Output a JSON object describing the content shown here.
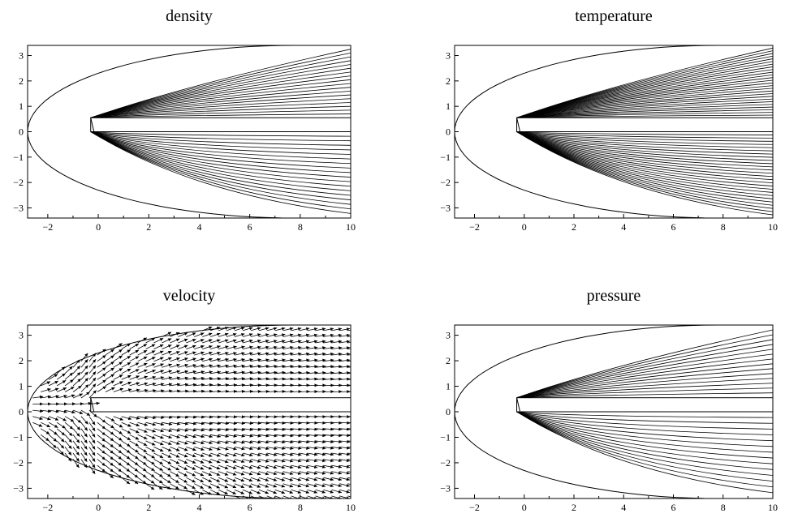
{
  "chart_data": [
    {
      "type": "contour",
      "title": "density",
      "xlim": [
        -2.8,
        10
      ],
      "ylim": [
        -3.4,
        3.4
      ],
      "xticks": [
        -2,
        0,
        2,
        4,
        6,
        8,
        10
      ],
      "yticks": [
        3,
        2,
        1,
        0,
        -1,
        -2,
        -3
      ],
      "xtick_labels": [
        "−2",
        "0",
        "2",
        "4",
        "6",
        "8",
        "10"
      ],
      "ytick_labels": [
        "3",
        "2",
        "1",
        "0",
        "−1",
        "−2",
        "−3"
      ],
      "plate": {
        "x_start": -0.3,
        "x_end": 10,
        "y_top": 0.55,
        "y_bottom": 0.0
      },
      "shock_nose_x": -2.8
    },
    {
      "type": "contour",
      "title": "temperature",
      "xlim": [
        -2.8,
        10
      ],
      "ylim": [
        -3.4,
        3.4
      ],
      "xticks": [
        -2,
        0,
        2,
        4,
        6,
        8,
        10
      ],
      "yticks": [
        3,
        2,
        1,
        0,
        -1,
        -2,
        -3
      ],
      "xtick_labels": [
        "−2",
        "0",
        "2",
        "4",
        "6",
        "8",
        "10"
      ],
      "ytick_labels": [
        "3",
        "2",
        "1",
        "0",
        "−1",
        "−2",
        "−3"
      ],
      "plate": {
        "x_start": -0.3,
        "x_end": 10,
        "y_top": 0.55,
        "y_bottom": 0.0
      },
      "shock_nose_x": -2.8
    },
    {
      "type": "vector_field",
      "title": "velocity",
      "xlim": [
        -2.8,
        10
      ],
      "ylim": [
        -3.4,
        3.4
      ],
      "xticks": [
        -2,
        0,
        2,
        4,
        6,
        8,
        10
      ],
      "yticks": [
        3,
        2,
        1,
        0,
        -1,
        -2,
        -3
      ],
      "xtick_labels": [
        "−2",
        "0",
        "2",
        "4",
        "6",
        "8",
        "10"
      ],
      "ytick_labels": [
        "3",
        "2",
        "1",
        "0",
        "−1",
        "−2",
        "−3"
      ],
      "plate": {
        "x_start": -0.3,
        "x_end": 10,
        "y_top": 0.55,
        "y_bottom": 0.0
      },
      "shock_nose_x": -2.8
    },
    {
      "type": "contour",
      "title": "pressure",
      "xlim": [
        -2.8,
        10
      ],
      "ylim": [
        -3.4,
        3.4
      ],
      "xticks": [
        -2,
        0,
        2,
        4,
        6,
        8,
        10
      ],
      "yticks": [
        3,
        2,
        1,
        0,
        -1,
        -2,
        -3
      ],
      "xtick_labels": [
        "−2",
        "0",
        "2",
        "4",
        "6",
        "8",
        "10"
      ],
      "ytick_labels": [
        "3",
        "2",
        "1",
        "0",
        "−1",
        "−2",
        "−3"
      ],
      "plate": {
        "x_start": -0.3,
        "x_end": 10,
        "y_top": 0.55,
        "y_bottom": 0.0
      },
      "shock_nose_x": -2.8
    }
  ]
}
